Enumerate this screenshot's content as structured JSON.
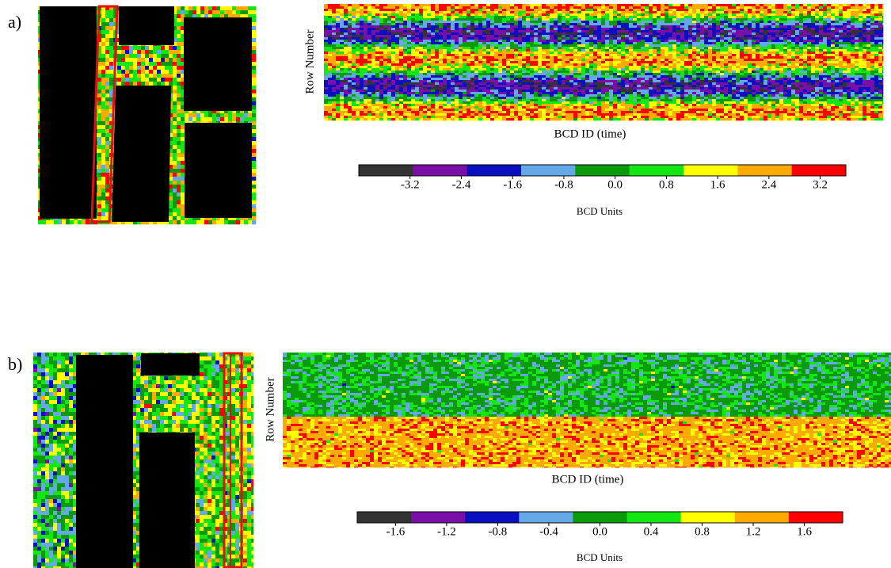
{
  "panels": [
    {
      "label": "a)",
      "y_label": "Row Number",
      "x_label": "BCD ID (time)",
      "colorbar": {
        "label": "BCD Units",
        "clim": [
          -4,
          3.6
        ],
        "ticks": [
          -3.2,
          -2.4,
          -1.6,
          -0.8,
          {
            "value": 0,
            "label": "0.0"
          },
          0.8,
          1.6,
          2.4,
          3.2
        ],
        "colors": [
          "#333333",
          "#7a0fa8",
          "#0a0fc0",
          "#64a8e8",
          "#0a9a0a",
          "#14e614",
          "#ffff00",
          "#ffaa00",
          "#ff0000"
        ]
      }
    },
    {
      "label": "b)",
      "y_label": "Row Number",
      "x_label": "BCD ID (time)",
      "colorbar": {
        "label": "BCD Units",
        "clim": [
          -1.9,
          1.9
        ],
        "ticks": [
          -1.6,
          -1.2,
          -0.8,
          -0.4,
          {
            "value": 0,
            "label": "0.0"
          },
          0.4,
          0.8,
          1.2,
          1.6
        ],
        "colors": [
          "#333333",
          "#7a0fa8",
          "#0a0fc0",
          "#64a8e8",
          "#0a9a0a",
          "#14e614",
          "#ffff00",
          "#ffaa00",
          "#ff0000"
        ]
      }
    }
  ]
}
